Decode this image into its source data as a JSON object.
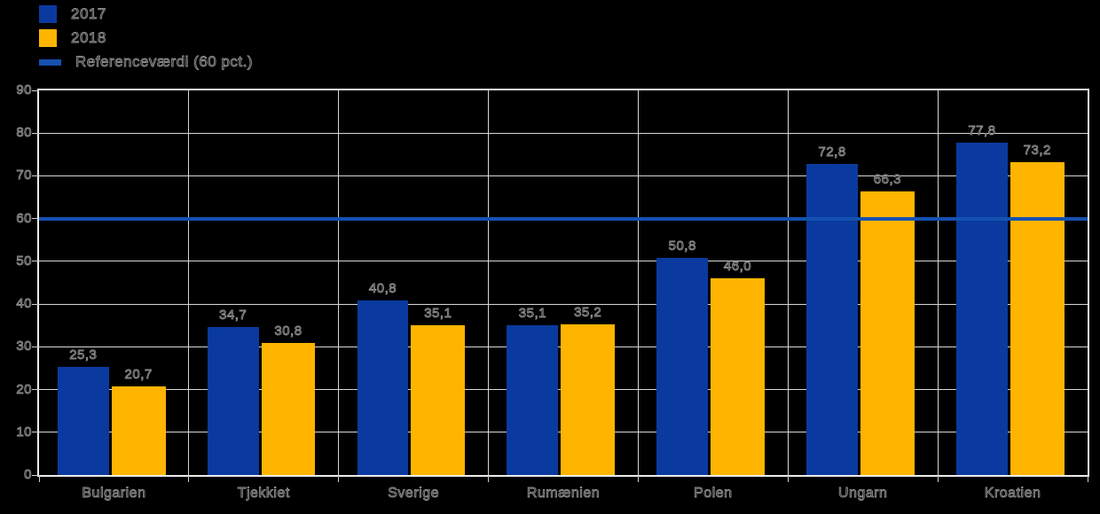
{
  "legend": {
    "items": [
      {
        "label": "2017",
        "color": "#0a3a9f",
        "swatch": "square"
      },
      {
        "label": "2018",
        "color": "#ffb400",
        "swatch": "square"
      },
      {
        "label": "Referenceværdi (60 pct.)",
        "color": "#1551b0",
        "swatch": "line"
      }
    ]
  },
  "chart_data": {
    "type": "bar",
    "categories": [
      "Bulgarien",
      "Tjekkiet",
      "Sverige",
      "Rumænien",
      "Polen",
      "Ungarn",
      "Kroatien"
    ],
    "series": [
      {
        "name": "2017",
        "color": "#0a3a9f",
        "values": [
          25.3,
          34.7,
          40.8,
          35.1,
          50.8,
          72.8,
          77.8
        ]
      },
      {
        "name": "2018",
        "color": "#ffb400",
        "values": [
          20.7,
          30.8,
          35.1,
          35.2,
          46.0,
          66.3,
          73.2
        ]
      }
    ],
    "data_labels": {
      "2017": [
        "25,3",
        "34,7",
        "40,8",
        "35,1",
        "50,8",
        "72,8",
        "77,8"
      ],
      "2018": [
        "20,7",
        "30,8",
        "35,1",
        "35,2",
        "46,0",
        "66,3",
        "73,2"
      ]
    },
    "reference_line": {
      "value": 60,
      "label": "Referenceværdi (60 pct.)",
      "color": "#1551b0"
    },
    "title": "",
    "xlabel": "",
    "ylabel": "",
    "ylim": [
      0,
      90
    ],
    "ytick_step": 10,
    "ytick_labels": [
      "0",
      "10",
      "20",
      "30",
      "40",
      "50",
      "60",
      "70",
      "80",
      "90"
    ],
    "grid": true,
    "legend_position": "top-left",
    "decimal_separator": ","
  },
  "colors": {
    "background": "#000000",
    "plot_border": "#ececec",
    "gridline": "#d6d6d6",
    "text_outline": "#8f8f8f"
  }
}
